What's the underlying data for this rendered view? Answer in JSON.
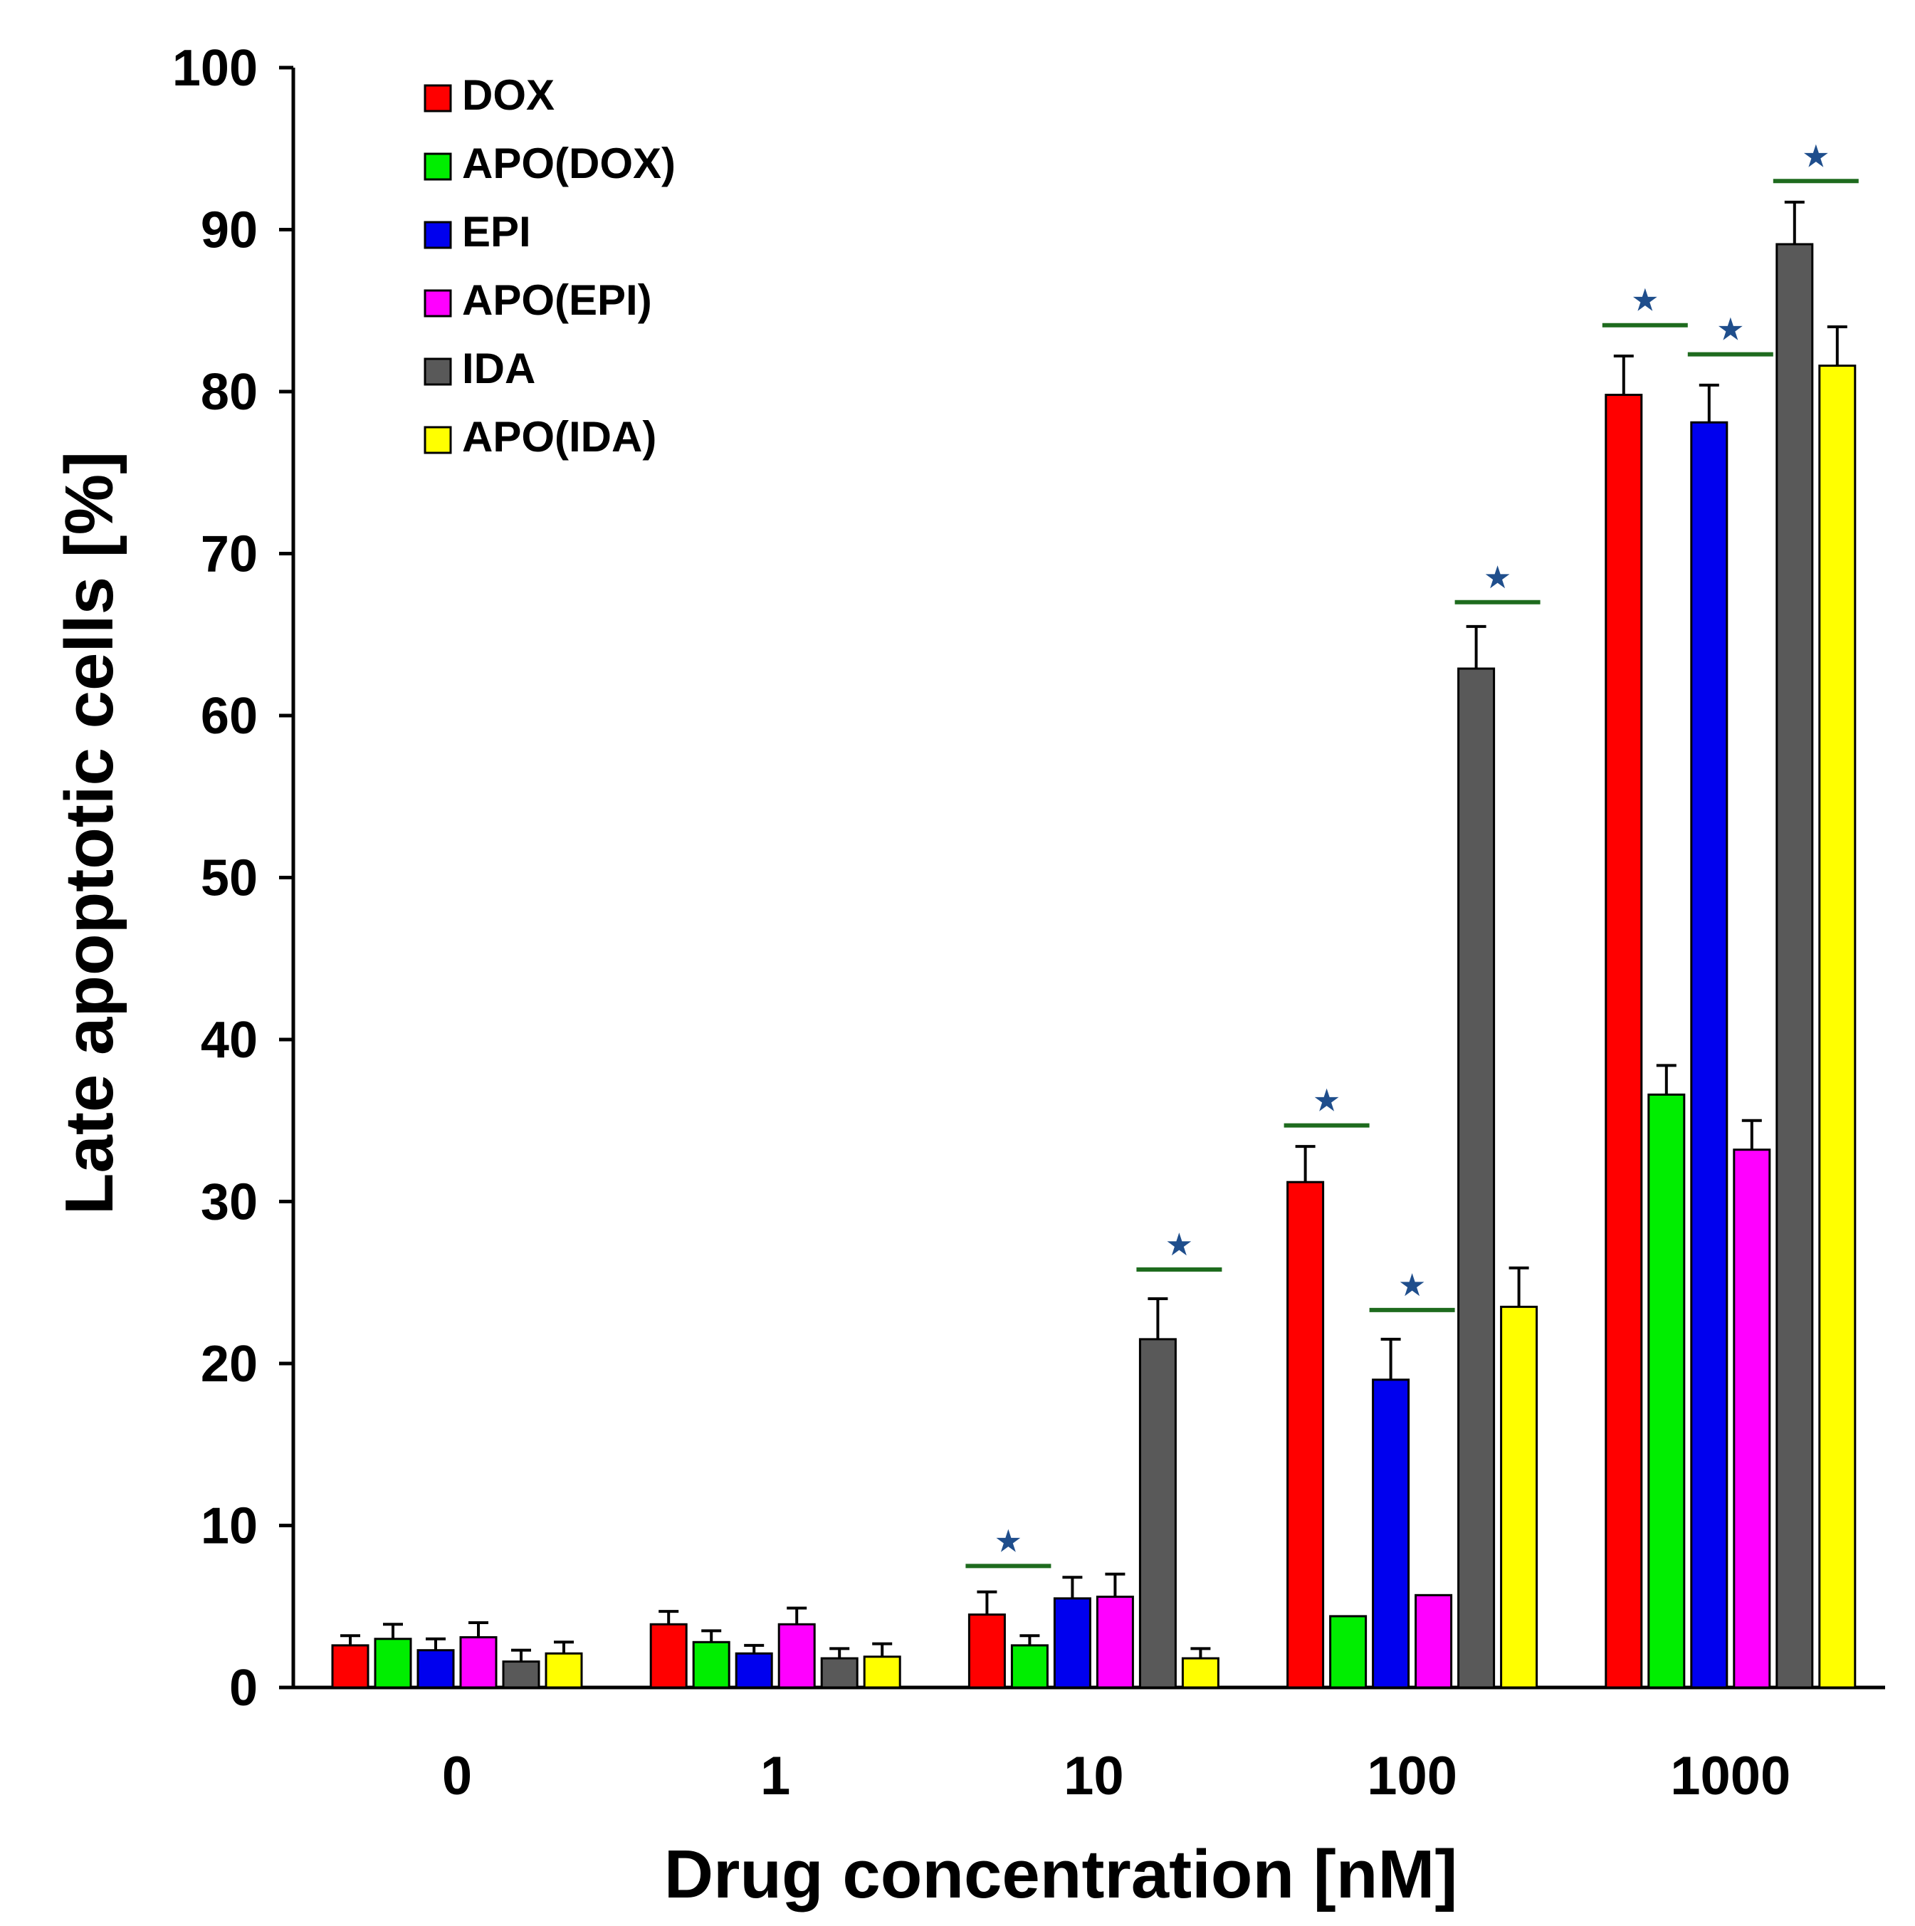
{
  "chart_data": {
    "type": "bar",
    "title": "",
    "xlabel": "Drug concentration [nM]",
    "ylabel": "Late apoptotic cells [%]",
    "ylim": [
      0,
      100
    ],
    "yticks": [
      "0",
      "10",
      "20",
      "30",
      "40",
      "50",
      "60",
      "70",
      "80",
      "90",
      "100"
    ],
    "categories": [
      "0",
      "1",
      "10",
      "100",
      "1000"
    ],
    "legend_position": "top-left",
    "series": [
      {
        "name": "DOX",
        "color": "#ff0000",
        "values": [
          2.6,
          3.9,
          4.5,
          31.2,
          79.8
        ],
        "errors": [
          0.6,
          0.8,
          1.4,
          2.2,
          2.4
        ]
      },
      {
        "name": "APO(DOX)",
        "color": "#00ee00",
        "values": [
          3.0,
          2.8,
          2.6,
          4.4,
          36.6
        ],
        "errors": [
          0.9,
          0.7,
          0.6,
          0.0,
          1.8
        ]
      },
      {
        "name": "EPI",
        "color": "#0000ee",
        "values": [
          2.3,
          2.1,
          5.5,
          19.0,
          78.1
        ],
        "errors": [
          0.7,
          0.5,
          1.3,
          2.5,
          2.3
        ]
      },
      {
        "name": "APO(EPI)",
        "color": "#ff00ff",
        "values": [
          3.1,
          3.9,
          5.6,
          5.7,
          33.2
        ],
        "errors": [
          0.9,
          1.0,
          1.4,
          0.0,
          1.8
        ]
      },
      {
        "name": "IDA",
        "color": "#595959",
        "values": [
          1.6,
          1.8,
          21.5,
          62.9,
          89.1
        ],
        "errors": [
          0.7,
          0.6,
          2.5,
          2.6,
          2.6
        ]
      },
      {
        "name": "APO(IDA)",
        "color": "#ffff00",
        "values": [
          2.1,
          1.9,
          1.8,
          23.5,
          81.6
        ],
        "errors": [
          0.7,
          0.8,
          0.6,
          2.4,
          2.4
        ]
      }
    ],
    "significance": [
      {
        "category": "10",
        "series_pair": [
          "DOX",
          "APO(DOX)"
        ],
        "label": "★",
        "level": 7.5
      },
      {
        "category": "10",
        "series_pair": [
          "IDA",
          "APO(IDA)"
        ],
        "label": "★",
        "level": 25.8
      },
      {
        "category": "100",
        "series_pair": [
          "DOX",
          "APO(DOX)"
        ],
        "label": "★",
        "level": 34.7
      },
      {
        "category": "100",
        "series_pair": [
          "EPI",
          "APO(EPI)"
        ],
        "label": "★",
        "level": 23.3
      },
      {
        "category": "100",
        "series_pair": [
          "IDA",
          "APO(IDA)"
        ],
        "label": "★",
        "level": 67.0
      },
      {
        "category": "1000",
        "series_pair": [
          "DOX",
          "APO(DOX)"
        ],
        "label": "★",
        "level": 84.1
      },
      {
        "category": "1000",
        "series_pair": [
          "EPI",
          "APO(EPI)"
        ],
        "label": "★",
        "level": 82.3
      },
      {
        "category": "1000",
        "series_pair": [
          "IDA",
          "APO(IDA)"
        ],
        "label": "★",
        "level": 93.0
      }
    ],
    "significance_line_color": "#1e6b1e"
  }
}
